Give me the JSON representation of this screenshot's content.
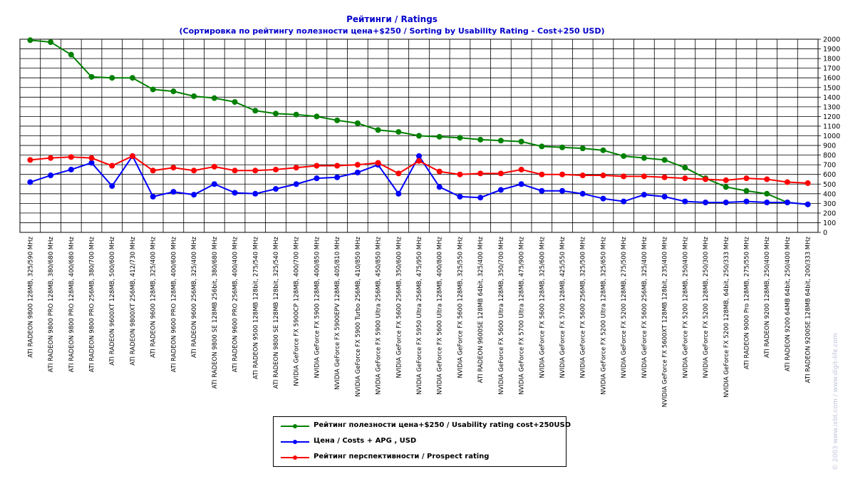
{
  "chart_data": {
    "type": "line",
    "title": "Рейтинги / Ratings",
    "subtitle": "(Сортировка по рейтингу полезности цена+$250 / Sorting by Usability Rating - Cost+250 USD)",
    "xlabel": "",
    "ylabel": "",
    "ylim": [
      0,
      2000
    ],
    "ytick_step": 100,
    "grid": true,
    "legend_position": "bottom",
    "categories": [
      "ATI RADEON 9800 128MB, 325/590 MHz",
      "ATI RADEON 9800 PRO 128MB, 380/680 MHz",
      "ATI RADEON 9800 PRO 128MB, 400/680 MHz",
      "ATI RADEON 9800 PRO 256MB, 380/700 MHz",
      "ATI RADEON 9600XT 128MB, 500/600 MHz",
      "ATI RADEON 9800XT 256MB, 412/730 MHz",
      "ATI RADEON 9600 128MB, 325/400 MHz",
      "ATI RADEON 9600 PRO 128MB, 400/600 MHz",
      "ATI RADEON 9600 256MB, 325/400 MHz",
      "ATI RADEON 9800 SE 128MB 256bit, 380/680 MHz",
      "ATI RADEON 9600 PRO 256MB, 400/400 MHz",
      "ATI RADEON 9500 128MB 128bit, 275/540 MHz",
      "ATI RADEON 9800 SE 128MB 128bit, 325/540 MHz",
      "NVIDIA GeForce FX 5900CP 128MB, 400/700 MHz",
      "NVIDIA GeForce FX 5900 128MB, 400/850 MHz",
      "NVIDIA GeForce FX 5900EPV 128MB, 405/810 MHz",
      "NVIDIA GeForce FX 5900 Turbo 256MB, 410/850 MHz",
      "NVIDIA GeForce FX 5900 Ultra 256MB, 450/850 MHz",
      "NVIDIA GeForce FX 5600 256MB, 350/600 MHz",
      "NVIDIA GeForce FX 5950 Ultra 256MB, 475/950 MHz",
      "NVIDIA GeForce FX 5600 Ultra 128MB, 400/800 MHz",
      "NVIDIA GeForce FX 5600 128MB, 325/550 MHz",
      "ATI RADEON 9600SE 128MB 64bit, 325/400 MHz",
      "NVIDIA GeForce FX 5600 Ultra 128MB, 350/700 MHz",
      "NVIDIA GeForce FX 5700 Ultra 128MB, 475/900 MHz",
      "NVIDIA GeForce FX 5600 128MB, 325/600 MHz",
      "NVIDIA GeForce FX 5700 128MB, 425/550 MHz",
      "NVIDIA GeForce FX 5600 256MB, 325/500 MHz",
      "NVIDIA GeForce FX 5200 Ultra 128MB, 325/650 MHz",
      "NVIDIA GeForce FX 5200 128MB, 275/500 MHz",
      "NVIDIA GeForce FX 5600 256MB, 325/400 MHz",
      "NVIDIA GeForce FX 5600XT 128MB 128bit, 235/400 MHz",
      "NVIDIA GeForce FX 5200 128MB, 250/400 MHz",
      "NVIDIA GeForce FX 5200 128MB, 250/300 MHz",
      "NVIDIA GeForce FX 5200 128MB, 64bit, 250/333 MHz",
      "ATI RADEON 9000 Pro 128MB, 275/550 MHz",
      "ATI RADEON 9200 128MB, 250/400 MHz",
      "ATI RADEON 9200 64MB 64bit, 250/400 MHz",
      "ATI RADEON 9200SE 128MB 64bit, 200/333 MHz"
    ],
    "series": [
      {
        "name": "Рейтинг полезности цена+$250 / Usability rating cost+250USD",
        "color": "#008000",
        "values": [
          1990,
          1970,
          1840,
          1610,
          1600,
          1600,
          1480,
          1460,
          1410,
          1390,
          1350,
          1260,
          1230,
          1220,
          1200,
          1160,
          1130,
          1060,
          1040,
          1000,
          990,
          980,
          960,
          950,
          940,
          890,
          880,
          870,
          850,
          790,
          770,
          750,
          670,
          560,
          470,
          430,
          400,
          310,
          290
        ]
      },
      {
        "name": "Цена / Costs + APG , USD",
        "color": "#0000ff",
        "values": [
          520,
          590,
          650,
          720,
          480,
          790,
          370,
          420,
          390,
          500,
          410,
          400,
          450,
          500,
          560,
          570,
          620,
          700,
          400,
          790,
          470,
          370,
          360,
          440,
          500,
          430,
          430,
          400,
          350,
          320,
          390,
          370,
          320,
          310,
          310,
          320,
          310,
          310,
          290
        ]
      },
      {
        "name": "Рейтинг перспективности / Prospect rating",
        "color": "#ff0000",
        "values": [
          750,
          770,
          780,
          770,
          690,
          790,
          640,
          670,
          640,
          680,
          640,
          640,
          650,
          670,
          690,
          690,
          700,
          720,
          610,
          740,
          630,
          600,
          610,
          610,
          650,
          600,
          600,
          590,
          590,
          580,
          580,
          570,
          560,
          550,
          540,
          560,
          550,
          520,
          510
        ]
      }
    ]
  },
  "watermark": "© 2003 www.ixbt.com / www.digit-life.com"
}
